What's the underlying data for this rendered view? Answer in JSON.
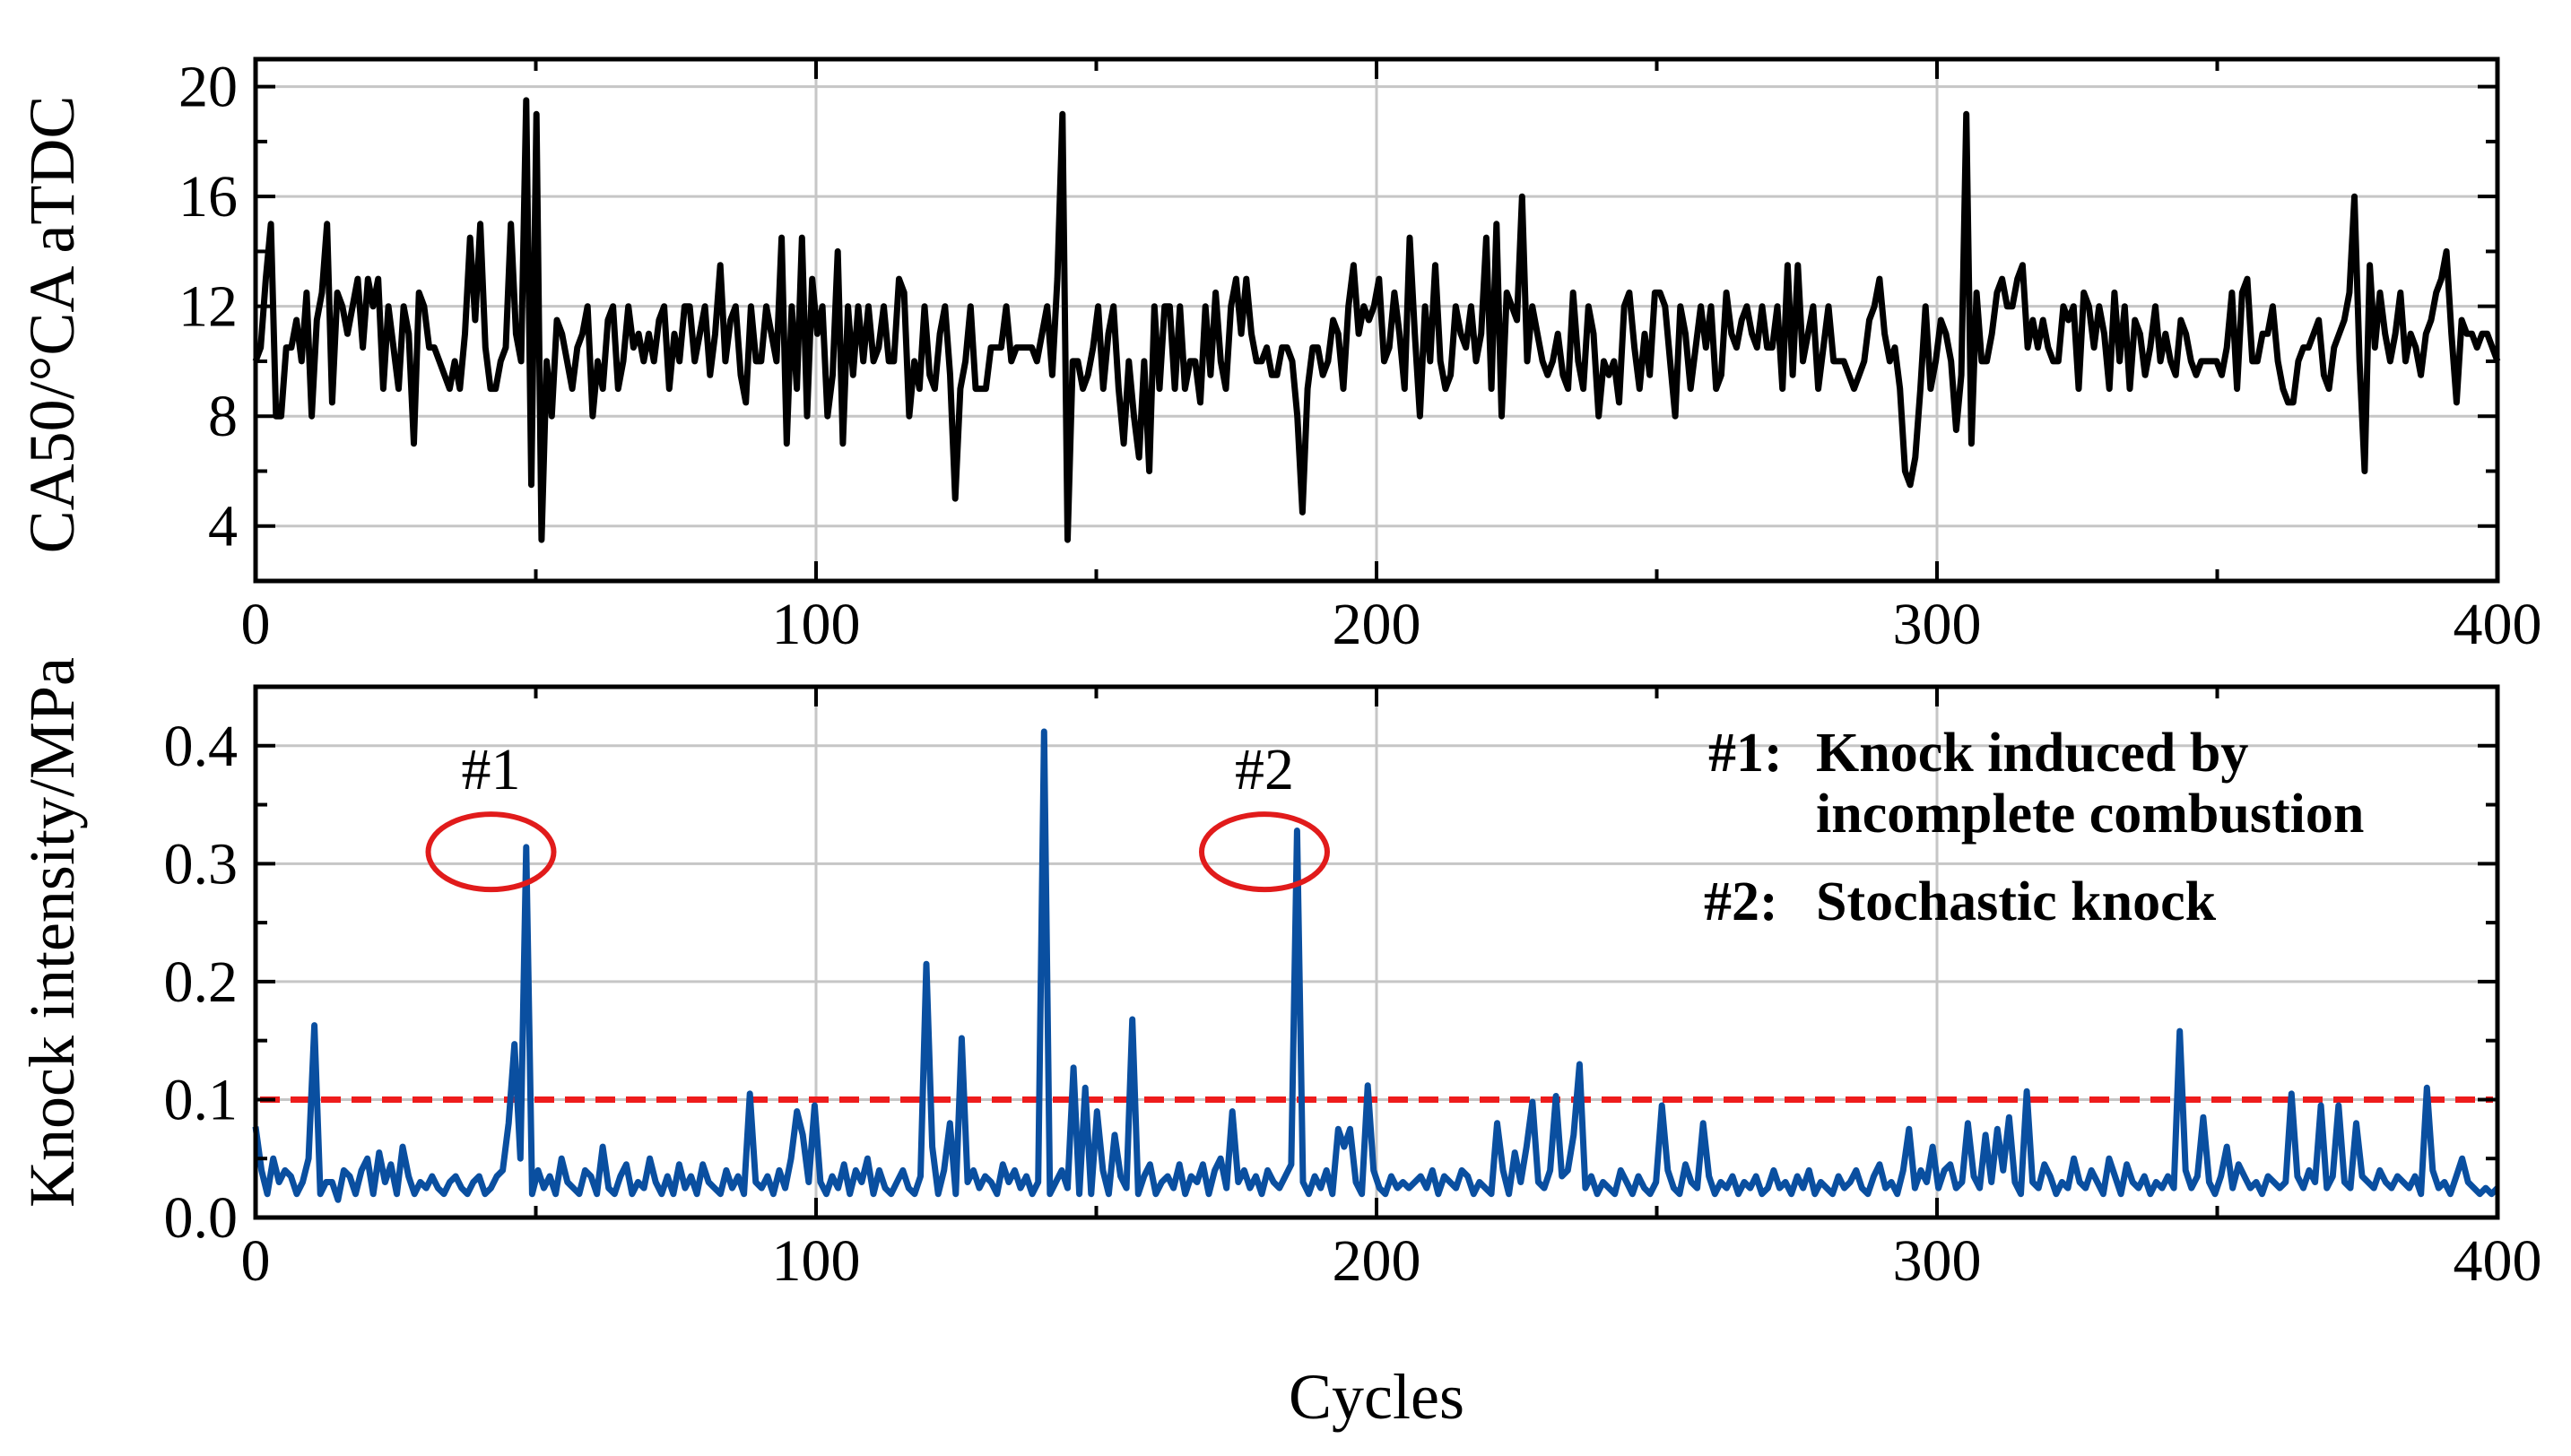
{
  "chart_data": [
    {
      "id": "ca50",
      "type": "line",
      "title": "",
      "xlabel": "",
      "ylabel": "CA50/°CA aTDC",
      "xlim": [
        0,
        400
      ],
      "ylim": [
        2,
        21
      ],
      "xticks": [
        0,
        100,
        200,
        300,
        400
      ],
      "xtick_labels": [
        "0",
        "100",
        "200",
        "300",
        "400"
      ],
      "yticks": [
        4,
        8,
        12,
        16,
        20
      ],
      "ytick_labels": [
        "4",
        "8",
        "12",
        "16",
        "20"
      ],
      "grid": true,
      "series": [
        {
          "name": "CA50",
          "color": "#000000",
          "values": [
            10,
            10.5,
            13,
            15,
            8,
            8,
            10.5,
            10.5,
            11.5,
            10,
            12.5,
            8,
            11.5,
            12.5,
            15,
            8.5,
            12.5,
            12,
            11,
            12,
            13,
            10.5,
            13,
            12,
            13,
            9,
            12,
            10.5,
            9,
            12,
            11,
            7,
            12.5,
            12,
            10.5,
            10.5,
            10,
            9.5,
            9,
            10,
            9,
            11,
            14.5,
            11.5,
            15,
            10.5,
            9,
            9,
            10,
            10.5,
            15,
            11,
            10,
            19.5,
            5.5,
            19,
            3.5,
            10,
            8,
            11.5,
            11,
            10,
            9,
            10.5,
            11,
            12,
            8,
            10,
            9,
            11.5,
            12,
            9,
            10,
            12,
            10.5,
            11,
            10,
            11,
            10,
            11.5,
            12,
            9,
            11,
            10,
            12,
            12,
            10,
            11,
            12,
            9.5,
            11,
            13.5,
            10,
            11.5,
            12,
            9.5,
            8.5,
            12,
            10,
            10,
            12,
            11,
            10,
            14.5,
            7,
            12,
            9,
            14.5,
            8,
            13,
            11,
            12,
            8,
            9.5,
            14,
            7,
            12,
            9.5,
            12,
            10,
            12,
            10,
            10.5,
            12,
            10,
            10,
            13,
            12.5,
            8,
            10,
            9,
            12,
            9.5,
            9,
            11,
            12,
            9.5,
            5,
            9,
            10,
            12,
            9,
            9,
            9,
            10.5,
            10.5,
            10.5,
            12,
            10,
            10.5,
            10.5,
            10.5,
            10.5,
            10,
            11,
            12,
            9.5,
            13,
            19,
            3.5,
            10,
            10,
            9,
            9.5,
            10.5,
            12,
            9,
            11,
            12,
            9,
            7,
            10,
            8,
            6.5,
            10,
            6,
            12,
            9,
            12,
            12,
            9,
            12,
            9,
            10,
            10,
            8.5,
            12,
            9.5,
            12.5,
            10,
            9,
            12,
            13,
            11,
            13,
            11,
            10,
            10,
            10.5,
            9.5,
            9.5,
            10.5,
            10.5,
            10,
            8,
            4.5,
            9,
            10.5,
            10.5,
            9.5,
            10,
            11.5,
            11,
            9,
            12,
            13.5,
            11,
            12,
            11.5,
            12,
            13,
            10,
            10.5,
            12.5,
            11,
            9,
            14.5,
            11,
            8,
            12,
            10,
            13.5,
            10,
            9,
            9.5,
            12,
            11,
            10.5,
            12,
            10,
            11,
            14.5,
            9,
            15,
            8,
            12.5,
            12,
            11.5,
            16,
            10,
            12,
            11,
            10,
            9.5,
            10,
            11,
            9.5,
            9,
            12.5,
            10,
            9,
            12,
            11,
            8,
            10,
            9.5,
            10,
            8.5,
            12,
            12.5,
            10.5,
            9,
            11,
            9.5,
            12.5,
            12.5,
            12,
            10,
            8,
            12,
            11,
            9,
            10.5,
            12,
            10.5,
            12,
            9,
            9.5,
            12.5,
            11,
            10.5,
            11.5,
            12,
            11,
            10.5,
            12,
            10.5,
            10.5,
            12,
            9,
            13.5,
            9.5,
            13.5,
            10,
            11,
            12,
            9,
            10.5,
            12,
            10,
            10,
            10,
            9.5,
            9,
            9.5,
            10,
            11.5,
            12,
            13,
            11,
            10,
            10.5,
            9,
            6,
            5.5,
            6.5,
            9,
            12,
            9,
            10,
            11.5,
            11,
            10,
            7.5,
            9.5,
            19,
            7,
            12.5,
            10,
            10,
            11,
            12.5,
            13,
            12,
            12,
            13,
            13.5,
            10.5,
            11.5,
            10.5,
            11.5,
            10.5,
            10,
            10,
            12,
            11.5,
            12,
            9,
            12.5,
            12,
            10.5,
            12,
            11,
            9,
            12.5,
            10,
            12,
            9,
            11.5,
            11,
            9.5,
            10.5,
            12,
            10,
            11,
            10,
            9.5,
            11.5,
            11,
            10,
            9.5,
            10,
            10,
            10,
            10,
            9.5,
            10.5,
            12.5,
            9,
            12.5,
            13,
            10,
            10,
            11,
            11,
            12,
            10,
            9,
            8.5,
            8.5,
            10,
            10.5,
            10.5,
            11,
            11.5,
            9.5,
            9,
            10.5,
            11,
            11.5,
            12.5,
            16,
            10,
            6,
            13.5,
            10.5,
            12.5,
            11,
            10,
            11,
            12.5,
            10,
            11,
            10.5,
            9.5,
            11,
            11.5,
            12.5,
            13,
            14,
            11,
            8.5,
            11.5,
            11,
            11,
            10.5,
            11,
            11,
            10.5,
            10
          ]
        }
      ]
    },
    {
      "id": "knock",
      "type": "line",
      "title": "",
      "xlabel": "Cycles",
      "ylabel": "Knock intensity/MPa",
      "xlim": [
        0,
        400
      ],
      "ylim": [
        0,
        0.45
      ],
      "xticks": [
        0,
        100,
        200,
        300,
        400
      ],
      "xtick_labels": [
        "0",
        "100",
        "200",
        "300",
        "400"
      ],
      "yticks": [
        0,
        0.1,
        0.2,
        0.3,
        0.4
      ],
      "ytick_labels": [
        "0.0",
        "0.1",
        "0.2",
        "0.3",
        "0.4"
      ],
      "grid": true,
      "threshold": {
        "value": 0.1,
        "color": "#ee1c1c",
        "style": "dashed"
      },
      "series": [
        {
          "name": "Knock intensity",
          "color": "#0a4fa0",
          "values": [
            0.077,
            0.04,
            0.02,
            0.05,
            0.03,
            0.04,
            0.035,
            0.02,
            0.03,
            0.05,
            0.163,
            0.02,
            0.03,
            0.03,
            0.015,
            0.04,
            0.035,
            0.02,
            0.04,
            0.05,
            0.02,
            0.055,
            0.03,
            0.045,
            0.02,
            0.06,
            0.035,
            0.02,
            0.03,
            0.025,
            0.035,
            0.025,
            0.02,
            0.03,
            0.035,
            0.025,
            0.02,
            0.03,
            0.035,
            0.02,
            0.025,
            0.035,
            0.04,
            0.08,
            0.147,
            0.05,
            0.314,
            0.02,
            0.04,
            0.025,
            0.035,
            0.02,
            0.05,
            0.03,
            0.025,
            0.02,
            0.04,
            0.035,
            0.02,
            0.06,
            0.025,
            0.02,
            0.035,
            0.045,
            0.02,
            0.03,
            0.025,
            0.05,
            0.03,
            0.02,
            0.035,
            0.02,
            0.045,
            0.025,
            0.035,
            0.02,
            0.045,
            0.03,
            0.025,
            0.02,
            0.04,
            0.025,
            0.035,
            0.02,
            0.105,
            0.03,
            0.025,
            0.035,
            0.02,
            0.04,
            0.025,
            0.05,
            0.09,
            0.07,
            0.03,
            0.095,
            0.03,
            0.02,
            0.035,
            0.025,
            0.045,
            0.02,
            0.04,
            0.03,
            0.05,
            0.02,
            0.04,
            0.025,
            0.02,
            0.03,
            0.04,
            0.025,
            0.02,
            0.035,
            0.215,
            0.06,
            0.02,
            0.04,
            0.08,
            0.02,
            0.152,
            0.03,
            0.04,
            0.025,
            0.035,
            0.03,
            0.02,
            0.045,
            0.03,
            0.04,
            0.025,
            0.035,
            0.02,
            0.03,
            0.412,
            0.02,
            0.03,
            0.04,
            0.025,
            0.127,
            0.02,
            0.11,
            0.02,
            0.09,
            0.04,
            0.02,
            0.07,
            0.035,
            0.025,
            0.168,
            0.02,
            0.035,
            0.045,
            0.02,
            0.03,
            0.035,
            0.025,
            0.045,
            0.02,
            0.035,
            0.03,
            0.045,
            0.02,
            0.04,
            0.05,
            0.025,
            0.09,
            0.03,
            0.04,
            0.025,
            0.035,
            0.02,
            0.04,
            0.03,
            0.025,
            0.035,
            0.045,
            0.328,
            0.03,
            0.02,
            0.035,
            0.025,
            0.04,
            0.02,
            0.075,
            0.06,
            0.075,
            0.03,
            0.02,
            0.112,
            0.04,
            0.025,
            0.02,
            0.035,
            0.025,
            0.03,
            0.025,
            0.03,
            0.035,
            0.025,
            0.04,
            0.02,
            0.035,
            0.03,
            0.025,
            0.04,
            0.035,
            0.02,
            0.03,
            0.025,
            0.02,
            0.08,
            0.04,
            0.02,
            0.055,
            0.03,
            0.06,
            0.098,
            0.03,
            0.025,
            0.04,
            0.103,
            0.035,
            0.04,
            0.07,
            0.13,
            0.025,
            0.035,
            0.02,
            0.03,
            0.025,
            0.02,
            0.04,
            0.03,
            0.02,
            0.035,
            0.025,
            0.02,
            0.03,
            0.095,
            0.04,
            0.025,
            0.02,
            0.045,
            0.03,
            0.025,
            0.08,
            0.035,
            0.02,
            0.03,
            0.025,
            0.035,
            0.02,
            0.03,
            0.025,
            0.035,
            0.02,
            0.025,
            0.04,
            0.025,
            0.03,
            0.02,
            0.035,
            0.025,
            0.04,
            0.02,
            0.03,
            0.025,
            0.02,
            0.035,
            0.025,
            0.03,
            0.04,
            0.025,
            0.02,
            0.035,
            0.045,
            0.025,
            0.03,
            0.02,
            0.04,
            0.075,
            0.025,
            0.04,
            0.03,
            0.06,
            0.025,
            0.04,
            0.045,
            0.025,
            0.03,
            0.08,
            0.035,
            0.025,
            0.07,
            0.03,
            0.075,
            0.04,
            0.085,
            0.03,
            0.02,
            0.107,
            0.03,
            0.025,
            0.045,
            0.035,
            0.02,
            0.03,
            0.025,
            0.05,
            0.03,
            0.025,
            0.04,
            0.03,
            0.02,
            0.05,
            0.035,
            0.02,
            0.045,
            0.03,
            0.025,
            0.035,
            0.02,
            0.03,
            0.025,
            0.035,
            0.025,
            0.158,
            0.04,
            0.025,
            0.035,
            0.085,
            0.03,
            0.02,
            0.035,
            0.06,
            0.025,
            0.045,
            0.035,
            0.025,
            0.03,
            0.02,
            0.035,
            0.03,
            0.025,
            0.03,
            0.105,
            0.035,
            0.025,
            0.04,
            0.03,
            0.095,
            0.025,
            0.035,
            0.095,
            0.03,
            0.025,
            0.08,
            0.035,
            0.03,
            0.025,
            0.04,
            0.03,
            0.025,
            0.035,
            0.03,
            0.025,
            0.035,
            0.02,
            0.11,
            0.04,
            0.025,
            0.03,
            0.02,
            0.035,
            0.05,
            0.03,
            0.025,
            0.02,
            0.025,
            0.02,
            0.025
          ]
        }
      ],
      "circled_points": [
        {
          "label": "#1",
          "x": 42,
          "y": 0.31
        },
        {
          "label": "#2",
          "x": 180,
          "y": 0.31
        }
      ],
      "legend": {
        "position": "top-right",
        "entries": [
          {
            "key": "#1:",
            "text_lines": [
              "Knock induced by",
              "incomplete combustion"
            ]
          },
          {
            "key": "#2:",
            "text_lines": [
              "Stochastic knock"
            ]
          }
        ]
      }
    }
  ],
  "colors": {
    "grid": "#c6c6c6",
    "axis": "#000000",
    "circle": "#e11b1b"
  }
}
